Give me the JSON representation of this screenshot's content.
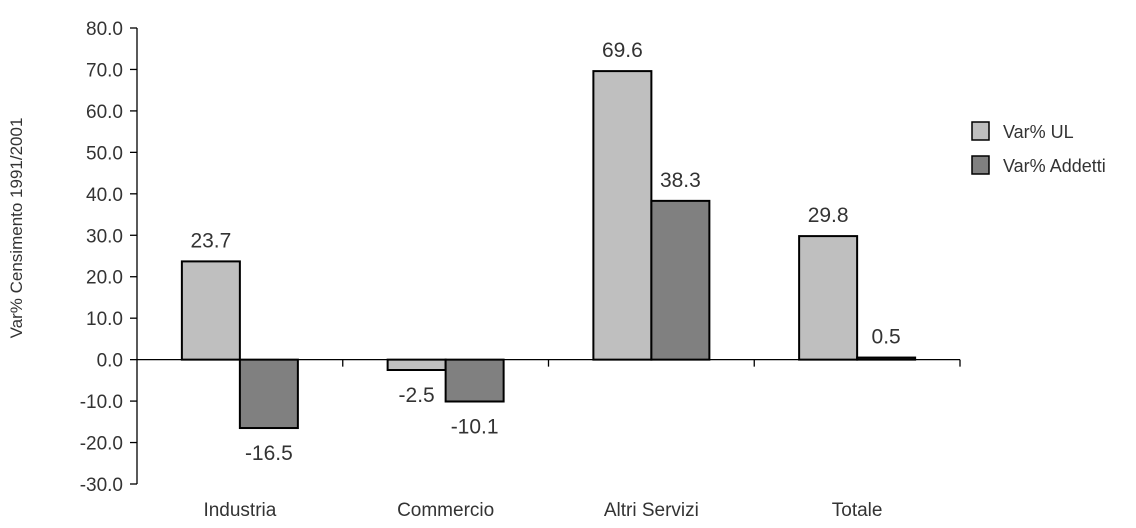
{
  "chart_data": {
    "type": "bar",
    "categories": [
      "Industria",
      "Commercio",
      "Altri Servizi",
      "Totale"
    ],
    "series": [
      {
        "name": "Var% UL",
        "values": [
          23.7,
          -2.5,
          69.6,
          29.8
        ],
        "color": "#bfbfbf"
      },
      {
        "name": "Var% Addetti",
        "values": [
          -16.5,
          -10.1,
          38.3,
          0.5
        ],
        "color": "#808080"
      }
    ],
    "data_labels": [
      [
        "23.7",
        "-2.5",
        "69.6",
        "29.8"
      ],
      [
        "-16.5",
        "-10.1",
        "38.3",
        "0.5"
      ]
    ],
    "title": "",
    "xlabel": "",
    "ylabel": "Var% Censimento 1991/2001",
    "ylim": [
      -30,
      80
    ],
    "yticks": [
      80,
      70,
      60,
      50,
      40,
      30,
      20,
      10,
      0,
      -10,
      -20,
      -30
    ],
    "ytick_labels": [
      "80.0",
      "70.0",
      "60.0",
      "50.0",
      "40.0",
      "30.0",
      "20.0",
      "10.0",
      "0.0",
      "-10.0",
      "-20.0",
      "-30.0"
    ],
    "grid": false,
    "legend_position": "right",
    "bar_stroke": "#000000"
  }
}
